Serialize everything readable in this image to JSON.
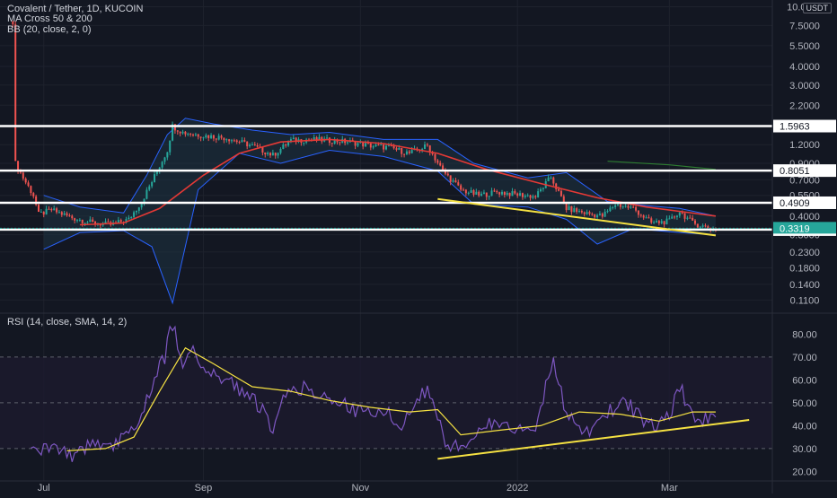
{
  "header": {
    "title": "Covalent / Tether, 1D, KUCOIN",
    "ma_label": "MA Cross 50 & 200",
    "bb_label": "BB (20, close, 2, 0)",
    "rsi_label": "RSI (14, close, SMA, 14, 2)",
    "currency": "USDT"
  },
  "colors": {
    "background": "#131722",
    "up_candle": "#26a69a",
    "down_candle": "#ef5350",
    "ma50": "#e53935",
    "ma200": "#2e7d32",
    "bollinger": "#2962ff",
    "bollinger_fill": "#1f3a4a",
    "rsi_line": "#7e57c2",
    "rsi_sma": "#f5e142",
    "trendline": "#f5e142",
    "level_line": "#ffffff",
    "rsi_band": "#1d1a2e"
  },
  "chart_data": [
    {
      "type": "candlestick",
      "name": "price",
      "scale": "log",
      "price_axis_labels": [
        "10.0000",
        "7.5000",
        "5.5000",
        "4.0000",
        "3.0000",
        "2.2000",
        "1.6000",
        "1.2000",
        "0.9000",
        "0.7000",
        "0.5500",
        "0.4000",
        "0.3000",
        "0.2300",
        "0.1800",
        "0.1400",
        "0.1100"
      ],
      "price_axis_values": [
        10.0,
        7.5,
        5.5,
        4.0,
        3.0,
        2.2,
        1.6,
        1.2,
        0.9,
        0.7,
        0.55,
        0.4,
        0.3,
        0.23,
        0.18,
        0.14,
        0.11
      ],
      "ylim": [
        0.095,
        10.5
      ],
      "time_axis": [
        {
          "label": "Jul",
          "date": "2021-07-01"
        },
        {
          "label": "Sep",
          "date": "2021-09-01"
        },
        {
          "label": "Nov",
          "date": "2021-11-01"
        },
        {
          "label": "2022",
          "date": "2022-01-01"
        },
        {
          "label": "Mar",
          "date": "2022-03-01"
        }
      ],
      "xlim": [
        "2021-06-14",
        "2022-04-10"
      ],
      "horizontal_levels": [
        {
          "label": "1.5963",
          "value": 1.5963
        },
        {
          "label": "0.8051",
          "value": 0.8051
        },
        {
          "label": "0.4909",
          "value": 0.4909
        },
        {
          "label": "0.3248",
          "value": 0.3248
        }
      ],
      "last_price": {
        "label": "0.3319",
        "value": 0.3319
      },
      "trendlines": [
        {
          "points": [
            {
              "date": "2021-12-01",
              "value": 0.52
            },
            {
              "date": "2022-03-19",
              "value": 0.297
            }
          ]
        }
      ],
      "close_path": [
        {
          "date": "2021-06-19",
          "value": 8.0
        },
        {
          "date": "2021-06-20",
          "value": 0.9
        },
        {
          "date": "2021-06-23",
          "value": 0.72
        },
        {
          "date": "2021-06-27",
          "value": 0.55
        },
        {
          "date": "2021-06-29",
          "value": 0.41
        },
        {
          "date": "2021-07-04",
          "value": 0.44
        },
        {
          "date": "2021-07-12",
          "value": 0.39
        },
        {
          "date": "2021-07-20",
          "value": 0.36
        },
        {
          "date": "2021-07-27",
          "value": 0.35
        },
        {
          "date": "2021-08-03",
          "value": 0.38
        },
        {
          "date": "2021-08-08",
          "value": 0.5
        },
        {
          "date": "2021-08-12",
          "value": 0.68
        },
        {
          "date": "2021-08-18",
          "value": 1.1
        },
        {
          "date": "2021-08-20",
          "value": 1.6
        },
        {
          "date": "2021-08-24",
          "value": 1.45
        },
        {
          "date": "2021-09-01",
          "value": 1.38
        },
        {
          "date": "2021-09-10",
          "value": 1.33
        },
        {
          "date": "2021-09-20",
          "value": 1.18
        },
        {
          "date": "2021-09-28",
          "value": 1.02
        },
        {
          "date": "2021-10-05",
          "value": 1.28
        },
        {
          "date": "2021-10-12",
          "value": 1.3
        },
        {
          "date": "2021-10-20",
          "value": 1.28
        },
        {
          "date": "2021-10-28",
          "value": 1.25
        },
        {
          "date": "2021-11-05",
          "value": 1.18
        },
        {
          "date": "2021-11-12",
          "value": 1.15
        },
        {
          "date": "2021-11-20",
          "value": 1.05
        },
        {
          "date": "2021-11-27",
          "value": 1.18
        },
        {
          "date": "2021-12-03",
          "value": 0.8
        },
        {
          "date": "2021-12-10",
          "value": 0.6
        },
        {
          "date": "2021-12-17",
          "value": 0.55
        },
        {
          "date": "2021-12-24",
          "value": 0.58
        },
        {
          "date": "2021-12-31",
          "value": 0.56
        },
        {
          "date": "2022-01-08",
          "value": 0.54
        },
        {
          "date": "2022-01-14",
          "value": 0.73
        },
        {
          "date": "2022-01-20",
          "value": 0.45
        },
        {
          "date": "2022-01-27",
          "value": 0.42
        },
        {
          "date": "2022-02-03",
          "value": 0.4
        },
        {
          "date": "2022-02-08",
          "value": 0.48
        },
        {
          "date": "2022-02-15",
          "value": 0.45
        },
        {
          "date": "2022-02-22",
          "value": 0.36
        },
        {
          "date": "2022-03-01",
          "value": 0.37
        },
        {
          "date": "2022-03-05",
          "value": 0.43
        },
        {
          "date": "2022-03-10",
          "value": 0.36
        },
        {
          "date": "2022-03-17",
          "value": 0.33
        },
        {
          "date": "2022-03-19",
          "value": 0.3319
        }
      ],
      "ma50_path": [
        {
          "date": "2021-07-15",
          "value": 0.35
        },
        {
          "date": "2021-08-01",
          "value": 0.36
        },
        {
          "date": "2021-08-15",
          "value": 0.45
        },
        {
          "date": "2021-09-01",
          "value": 0.75
        },
        {
          "date": "2021-09-15",
          "value": 1.05
        },
        {
          "date": "2021-10-01",
          "value": 1.25
        },
        {
          "date": "2021-10-20",
          "value": 1.3
        },
        {
          "date": "2021-11-10",
          "value": 1.22
        },
        {
          "date": "2021-12-01",
          "value": 1.05
        },
        {
          "date": "2021-12-20",
          "value": 0.82
        },
        {
          "date": "2022-01-10",
          "value": 0.66
        },
        {
          "date": "2022-02-01",
          "value": 0.53
        },
        {
          "date": "2022-02-20",
          "value": 0.46
        },
        {
          "date": "2022-03-19",
          "value": 0.4
        }
      ],
      "ma200_path": [
        {
          "date": "2022-02-05",
          "value": 0.93
        },
        {
          "date": "2022-03-01",
          "value": 0.88
        },
        {
          "date": "2022-03-19",
          "value": 0.82
        }
      ],
      "bb_upper_path": [
        {
          "date": "2021-07-01",
          "value": 0.55
        },
        {
          "date": "2021-07-15",
          "value": 0.46
        },
        {
          "date": "2021-08-01",
          "value": 0.42
        },
        {
          "date": "2021-08-10",
          "value": 0.75
        },
        {
          "date": "2021-08-18",
          "value": 1.4
        },
        {
          "date": "2021-08-25",
          "value": 1.8
        },
        {
          "date": "2021-09-05",
          "value": 1.65
        },
        {
          "date": "2021-09-20",
          "value": 1.5
        },
        {
          "date": "2021-10-05",
          "value": 1.4
        },
        {
          "date": "2021-10-20",
          "value": 1.45
        },
        {
          "date": "2021-11-10",
          "value": 1.3
        },
        {
          "date": "2021-12-01",
          "value": 1.3
        },
        {
          "date": "2021-12-15",
          "value": 0.9
        },
        {
          "date": "2022-01-05",
          "value": 0.72
        },
        {
          "date": "2022-01-20",
          "value": 0.78
        },
        {
          "date": "2022-02-05",
          "value": 0.5
        },
        {
          "date": "2022-02-20",
          "value": 0.47
        },
        {
          "date": "2022-03-05",
          "value": 0.45
        },
        {
          "date": "2022-03-19",
          "value": 0.4
        }
      ],
      "bb_lower_path": [
        {
          "date": "2021-07-01",
          "value": 0.24
        },
        {
          "date": "2021-07-15",
          "value": 0.31
        },
        {
          "date": "2021-08-01",
          "value": 0.32
        },
        {
          "date": "2021-08-12",
          "value": 0.25
        },
        {
          "date": "2021-08-20",
          "value": 0.105
        },
        {
          "date": "2021-08-30",
          "value": 0.6
        },
        {
          "date": "2021-09-15",
          "value": 1.05
        },
        {
          "date": "2021-10-01",
          "value": 0.9
        },
        {
          "date": "2021-10-20",
          "value": 1.1
        },
        {
          "date": "2021-11-10",
          "value": 1.0
        },
        {
          "date": "2021-12-01",
          "value": 0.8
        },
        {
          "date": "2021-12-15",
          "value": 0.48
        },
        {
          "date": "2022-01-05",
          "value": 0.46
        },
        {
          "date": "2022-01-20",
          "value": 0.38
        },
        {
          "date": "2022-02-01",
          "value": 0.26
        },
        {
          "date": "2022-02-15",
          "value": 0.33
        },
        {
          "date": "2022-03-05",
          "value": 0.31
        },
        {
          "date": "2022-03-19",
          "value": 0.3
        }
      ]
    },
    {
      "type": "line",
      "name": "rsi",
      "axis_labels": [
        "80.00",
        "70.00",
        "60.00",
        "50.00",
        "40.00",
        "30.00",
        "20.00"
      ],
      "axis_values": [
        80,
        70,
        60,
        50,
        40,
        30,
        20
      ],
      "ylim": [
        17,
        88
      ],
      "band": [
        30,
        70
      ],
      "midline": 50,
      "trendlines": [
        {
          "points": [
            {
              "date": "2021-12-01",
              "value": 25.5
            },
            {
              "date": "2022-04-01",
              "value": 42.5
            }
          ]
        }
      ],
      "rsi_path": [
        {
          "date": "2021-06-26",
          "value": 28
        },
        {
          "date": "2021-07-05",
          "value": 30
        },
        {
          "date": "2021-07-12",
          "value": 27
        },
        {
          "date": "2021-07-20",
          "value": 32
        },
        {
          "date": "2021-07-26",
          "value": 30
        },
        {
          "date": "2021-08-02",
          "value": 36
        },
        {
          "date": "2021-08-08",
          "value": 45
        },
        {
          "date": "2021-08-12",
          "value": 58
        },
        {
          "date": "2021-08-17",
          "value": 70
        },
        {
          "date": "2021-08-20",
          "value": 85
        },
        {
          "date": "2021-08-24",
          "value": 65
        },
        {
          "date": "2021-08-28",
          "value": 75
        },
        {
          "date": "2021-09-03",
          "value": 62
        },
        {
          "date": "2021-09-10",
          "value": 60
        },
        {
          "date": "2021-09-17",
          "value": 55
        },
        {
          "date": "2021-09-24",
          "value": 47
        },
        {
          "date": "2021-09-28",
          "value": 38
        },
        {
          "date": "2021-10-03",
          "value": 55
        },
        {
          "date": "2021-10-10",
          "value": 57
        },
        {
          "date": "2021-10-17",
          "value": 52
        },
        {
          "date": "2021-10-24",
          "value": 50
        },
        {
          "date": "2021-11-01",
          "value": 46
        },
        {
          "date": "2021-11-10",
          "value": 47
        },
        {
          "date": "2021-11-17",
          "value": 40
        },
        {
          "date": "2021-11-23",
          "value": 50
        },
        {
          "date": "2021-11-27",
          "value": 56
        },
        {
          "date": "2021-12-04",
          "value": 33
        },
        {
          "date": "2021-12-10",
          "value": 30
        },
        {
          "date": "2021-12-17",
          "value": 40
        },
        {
          "date": "2021-12-24",
          "value": 42
        },
        {
          "date": "2022-01-01",
          "value": 39
        },
        {
          "date": "2022-01-08",
          "value": 38
        },
        {
          "date": "2022-01-15",
          "value": 70
        },
        {
          "date": "2022-01-20",
          "value": 45
        },
        {
          "date": "2022-01-27",
          "value": 36
        },
        {
          "date": "2022-02-03",
          "value": 42
        },
        {
          "date": "2022-02-10",
          "value": 52
        },
        {
          "date": "2022-02-17",
          "value": 45
        },
        {
          "date": "2022-02-24",
          "value": 38
        },
        {
          "date": "2022-03-01",
          "value": 45
        },
        {
          "date": "2022-03-05",
          "value": 57
        },
        {
          "date": "2022-03-10",
          "value": 45
        },
        {
          "date": "2022-03-15",
          "value": 43
        },
        {
          "date": "2022-03-19",
          "value": 46
        }
      ],
      "rsi_sma_path": [
        {
          "date": "2021-07-10",
          "value": 29
        },
        {
          "date": "2021-07-25",
          "value": 30
        },
        {
          "date": "2021-08-05",
          "value": 35
        },
        {
          "date": "2021-08-15",
          "value": 55
        },
        {
          "date": "2021-08-25",
          "value": 74
        },
        {
          "date": "2021-09-05",
          "value": 67
        },
        {
          "date": "2021-09-20",
          "value": 57
        },
        {
          "date": "2021-10-05",
          "value": 55
        },
        {
          "date": "2021-10-20",
          "value": 51
        },
        {
          "date": "2021-11-05",
          "value": 48
        },
        {
          "date": "2021-11-20",
          "value": 46
        },
        {
          "date": "2021-12-01",
          "value": 47
        },
        {
          "date": "2021-12-10",
          "value": 36
        },
        {
          "date": "2021-12-25",
          "value": 38
        },
        {
          "date": "2022-01-10",
          "value": 40
        },
        {
          "date": "2022-01-25",
          "value": 46
        },
        {
          "date": "2022-02-10",
          "value": 45
        },
        {
          "date": "2022-02-25",
          "value": 42
        },
        {
          "date": "2022-03-10",
          "value": 46
        },
        {
          "date": "2022-03-19",
          "value": 46
        }
      ]
    }
  ]
}
